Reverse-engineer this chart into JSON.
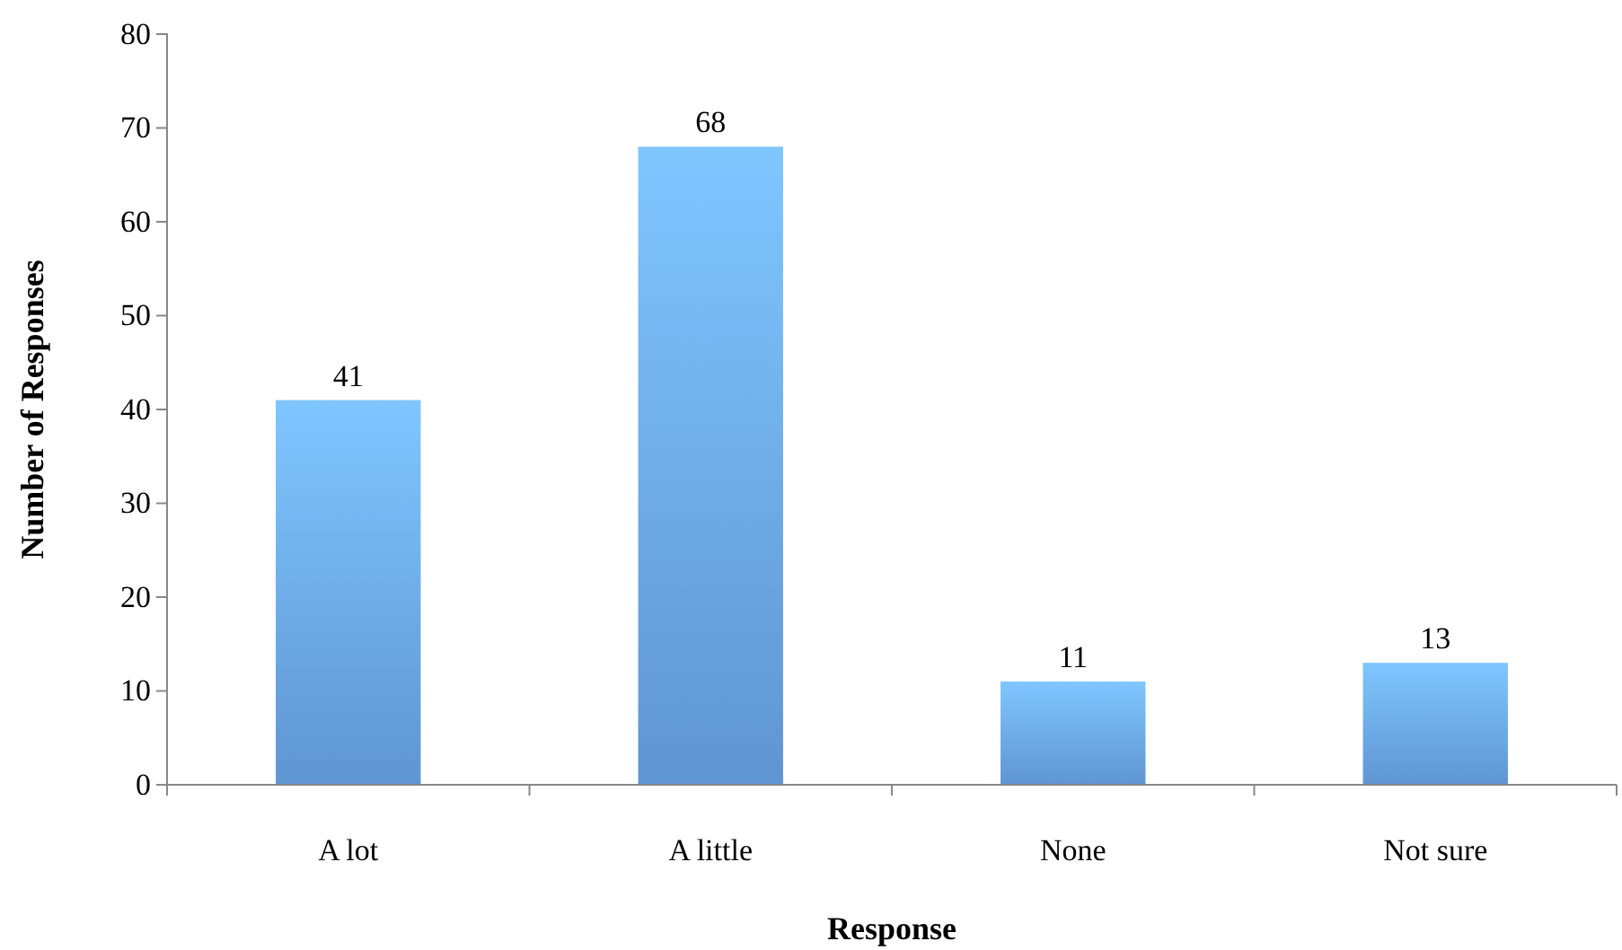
{
  "chart_data": {
    "type": "bar",
    "xlabel": "Response",
    "ylabel": "Number of Responses",
    "categories": [
      "A lot",
      "A little",
      "None",
      "Not sure"
    ],
    "values": [
      41,
      68,
      11,
      13
    ],
    "color": "#6aa6ea",
    "ylim": [
      0,
      80
    ],
    "yticks": [
      0,
      10,
      20,
      30,
      40,
      50,
      60,
      70,
      80
    ],
    "grid": false,
    "data_labels": true
  }
}
